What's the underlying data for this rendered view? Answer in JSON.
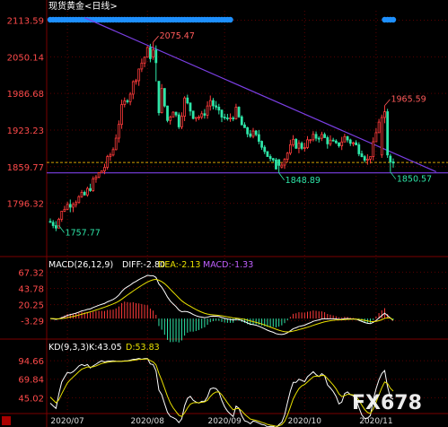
{
  "header": {
    "title": "现货黄金<日线>"
  },
  "watermark": "FX678",
  "colors": {
    "up": "#ff3b3b",
    "down": "#2ee6a8",
    "price_axis": "#ff4a4a",
    "grid": "#5a0000",
    "trend_line": "#7b3fe4",
    "support_line": "#7b3fe4",
    "dotted_line": "#d4a000",
    "dots": "#1e90ff",
    "diff": "#ffffff",
    "dea": "#e8e000",
    "macd_label": "#c060ff",
    "k_line": "#ffffff",
    "d_line": "#e8e000",
    "axis_text": "#dddddd",
    "annot_up": "#ff5a5a",
    "annot_down": "#2ee6a8"
  },
  "chart_data": [
    {
      "type": "candlestick",
      "title": "现货黄金<日线>",
      "y_ticks": [
        "2113.59",
        "2050.14",
        "1986.68",
        "1923.23",
        "1859.77",
        "1796.32"
      ],
      "y_tick_values": [
        2113.59,
        2050.14,
        1986.68,
        1923.23,
        1859.77,
        1796.32
      ],
      "ylim": [
        1735,
        2130
      ],
      "x_ticks": [
        "2020/07",
        "2020/08",
        "2020/09",
        "2020/10",
        "2020/11"
      ],
      "x_tick_index": [
        6,
        34,
        61,
        89,
        114
      ],
      "annotations": [
        {
          "text": "2075.47",
          "index": 36,
          "value": 2075.47,
          "dir": "up"
        },
        {
          "text": "1757.77",
          "index": 3,
          "value": 1757.77,
          "dir": "down"
        },
        {
          "text": "1848.89",
          "index": 80,
          "value": 1848.89,
          "dir": "down"
        },
        {
          "text": "1965.59",
          "index": 117,
          "value": 1965.59,
          "dir": "up"
        },
        {
          "text": "1850.57",
          "index": 119,
          "value": 1850.57,
          "dir": "down"
        }
      ],
      "trend_line": {
        "from": {
          "index": 12,
          "value": 2118
        },
        "to": {
          "index": 135,
          "value": 1851
        }
      },
      "support_line": {
        "value": 1849
      },
      "dotted_line": {
        "value": 1867
      },
      "top_dots": {
        "segments": [
          [
            0,
            63
          ],
          [
            117,
            120
          ]
        ]
      },
      "candles": []
    },
    {
      "type": "line",
      "title": "MACD(26,12,9)",
      "legend": [
        "DIFF:-2.80",
        "DEA:-2.13",
        "MACD:-1.33"
      ],
      "y_ticks": [
        "67.32",
        "43.78",
        "20.25",
        "-3.29"
      ],
      "y_tick_values": [
        67.32,
        43.78,
        20.25,
        -3.29
      ],
      "ylim": [
        -22,
        77
      ],
      "series": [
        {
          "name": "DIFF",
          "values": []
        },
        {
          "name": "DEA",
          "values": []
        },
        {
          "name": "MACD",
          "values": []
        }
      ]
    },
    {
      "type": "line",
      "title": "KD(9,3,3)",
      "legend": [
        "K:43.05",
        "D:53.83"
      ],
      "y_ticks": [
        "94.66",
        "69.84",
        "45.02"
      ],
      "y_tick_values": [
        94.66,
        69.84,
        45.02
      ],
      "ylim": [
        25,
        102
      ],
      "series": [
        {
          "name": "K",
          "values": []
        },
        {
          "name": "D",
          "values": []
        }
      ]
    }
  ]
}
